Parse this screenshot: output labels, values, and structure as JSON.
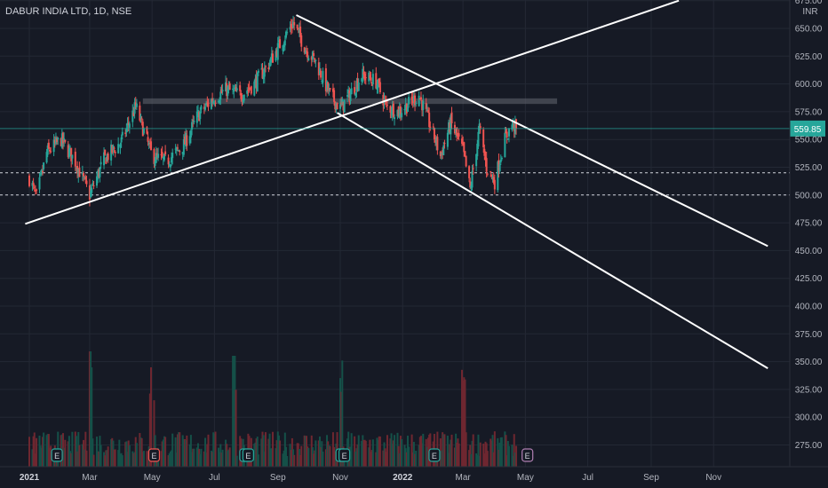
{
  "chart_data": {
    "type": "candlestick",
    "title": "DABUR INDIA LTD, 1D, NSE",
    "currency": "INR",
    "last_price": "559.85",
    "y_ticks": [
      "675.00",
      "650.00",
      "625.00",
      "600.00",
      "575.00",
      "550.00",
      "525.00",
      "500.00",
      "475.00",
      "450.00",
      "425.00",
      "400.00",
      "375.00",
      "350.00",
      "325.00",
      "300.00",
      "275.00"
    ],
    "x_ticks": [
      "2021",
      "Mar",
      "May",
      "Jul",
      "Sep",
      "Nov",
      "2022",
      "Mar",
      "May",
      "Jul",
      "Sep",
      "Nov"
    ],
    "bold_ticks": [
      "2021",
      "2022"
    ],
    "ylim": [
      258,
      680
    ],
    "price_path": [
      [
        "2021-01-01",
        515
      ],
      [
        "2021-01-08",
        498
      ],
      [
        "2021-01-18",
        538
      ],
      [
        "2021-02-01",
        550
      ],
      [
        "2021-02-15",
        530
      ],
      [
        "2021-03-01",
        500
      ],
      [
        "2021-03-15",
        532
      ],
      [
        "2021-04-01",
        548
      ],
      [
        "2021-04-15",
        580
      ],
      [
        "2021-04-22",
        560
      ],
      [
        "2021-05-01",
        535
      ],
      [
        "2021-05-15",
        530
      ],
      [
        "2021-06-01",
        545
      ],
      [
        "2021-06-15",
        572
      ],
      [
        "2021-06-28",
        585
      ],
      [
        "2021-07-12",
        595
      ],
      [
        "2021-07-26",
        590
      ],
      [
        "2021-08-09",
        600
      ],
      [
        "2021-08-23",
        618
      ],
      [
        "2021-09-06",
        640
      ],
      [
        "2021-09-16",
        655
      ],
      [
        "2021-09-28",
        632
      ],
      [
        "2021-10-08",
        620
      ],
      [
        "2021-10-22",
        590
      ],
      [
        "2021-11-01",
        578
      ],
      [
        "2021-11-10",
        590
      ],
      [
        "2021-11-22",
        608
      ],
      [
        "2021-12-06",
        602
      ],
      [
        "2021-12-16",
        580
      ],
      [
        "2021-12-28",
        575
      ],
      [
        "2022-01-07",
        582
      ],
      [
        "2022-01-17",
        590
      ],
      [
        "2022-01-31",
        555
      ],
      [
        "2022-02-07",
        535
      ],
      [
        "2022-02-17",
        565
      ],
      [
        "2022-03-01",
        540
      ],
      [
        "2022-03-08",
        505
      ],
      [
        "2022-03-17",
        560
      ],
      [
        "2022-03-24",
        525
      ],
      [
        "2022-04-01",
        512
      ],
      [
        "2022-04-10",
        548
      ],
      [
        "2022-04-18",
        564
      ],
      [
        "2022-04-22",
        559.85
      ]
    ],
    "trendlines": [
      {
        "from": [
          "2020-12-28",
          474
        ],
        "to": [
          "2022-09-28",
          675
        ]
      },
      {
        "from": [
          "2021-09-19",
          662
        ],
        "to": [
          "2022-12-24",
          454
        ]
      },
      {
        "from": [
          "2021-10-29",
          574
        ],
        "to": [
          "2022-12-24",
          344
        ]
      }
    ],
    "resistance_zone": {
      "x_start": "2021-04-22",
      "x_end": "2022-06-01",
      "y_low": 582,
      "y_high": 587
    },
    "dashed_levels": [
      520,
      500
    ],
    "volume_spikes": [
      "2021-03-01",
      "2021-05-01",
      "2021-07-20",
      "2021-11-01",
      "2022-03-01"
    ],
    "earnings_markers": [
      {
        "date": "2021-01-28",
        "label": "E",
        "kind": "reported"
      },
      {
        "date": "2021-05-03",
        "label": "E",
        "kind": "negative"
      },
      {
        "date": "2021-07-31",
        "label": "E",
        "kind": "reported"
      },
      {
        "date": "2021-08-03",
        "label": "E",
        "kind": "reported"
      },
      {
        "date": "2021-11-02",
        "label": "E",
        "kind": "reported"
      },
      {
        "date": "2021-11-05",
        "label": "E",
        "kind": "reported"
      },
      {
        "date": "2022-02-01",
        "label": "E",
        "kind": "reported"
      },
      {
        "date": "2022-05-03",
        "label": "E",
        "kind": "upcoming"
      }
    ],
    "colors": {
      "background": "#161a25",
      "grid": "#232834",
      "up": "#26a69a",
      "down": "#ef5350",
      "trendline": "#ffffff",
      "zone": "#5d606b",
      "price_tag": "#26a69a",
      "axis_text": "#b2b5be",
      "volume_up": "#155048",
      "volume_down": "#6e2730"
    }
  }
}
